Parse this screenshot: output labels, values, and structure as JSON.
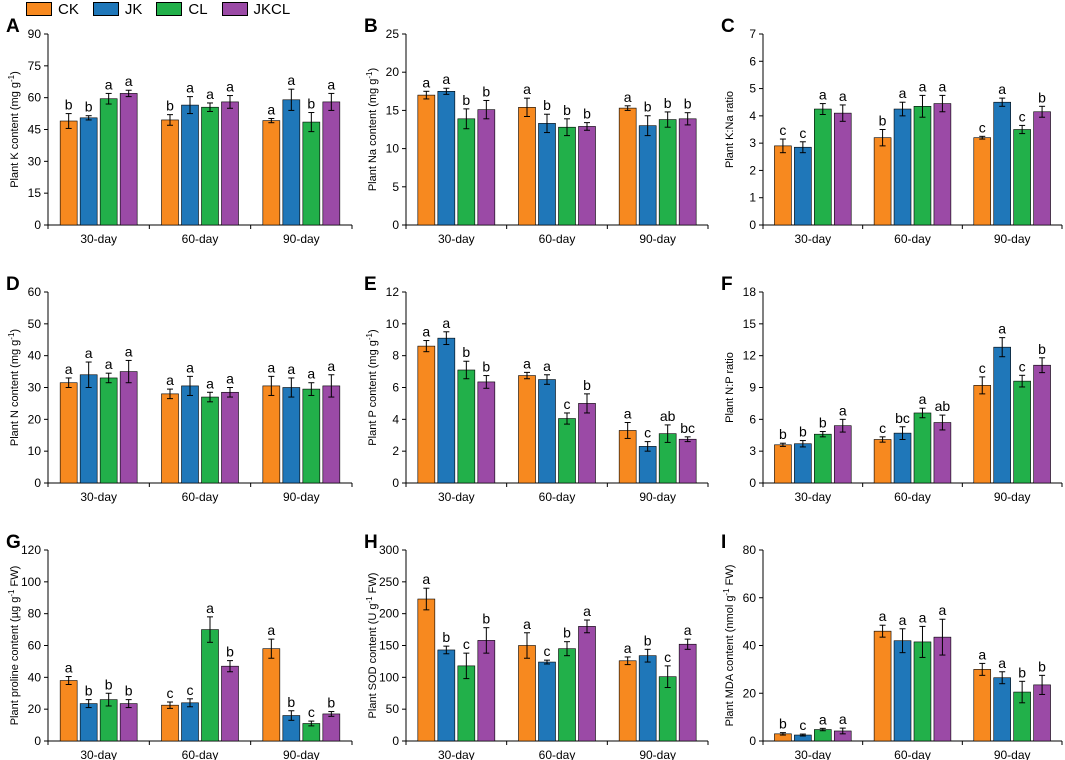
{
  "legend": {
    "items": [
      {
        "label": "CK",
        "color": "#f7891f"
      },
      {
        "label": "JK",
        "color": "#1f77b9"
      },
      {
        "label": "CL",
        "color": "#22b04a"
      },
      {
        "label": "JKCL",
        "color": "#9b4aa6"
      }
    ]
  },
  "chart_data": [
    {
      "panel": "A",
      "type": "bar",
      "categories": [
        "30-day",
        "60-day",
        "90-day"
      ],
      "ylabel": "Plant K content (mg g-1)",
      "ylim": [
        0,
        90
      ],
      "yticks": [
        0,
        15,
        30,
        45,
        60,
        75,
        90
      ],
      "series": [
        {
          "name": "CK",
          "values": [
            49,
            49.5,
            49.2
          ],
          "errors": [
            3.5,
            2.5,
            1.0
          ],
          "letters": [
            "b",
            "b",
            "a"
          ]
        },
        {
          "name": "JK",
          "values": [
            50.5,
            56.5,
            59
          ],
          "errors": [
            1.0,
            4.0,
            5.0
          ],
          "letters": [
            "b",
            "a",
            "a"
          ]
        },
        {
          "name": "CL",
          "values": [
            59.5,
            55.5,
            48.5
          ],
          "errors": [
            2.5,
            2.0,
            4.5
          ],
          "letters": [
            "a",
            "a",
            "b"
          ]
        },
        {
          "name": "JKCL",
          "values": [
            62,
            58,
            58
          ],
          "errors": [
            1.5,
            3.0,
            4.0
          ],
          "letters": [
            "a",
            "a",
            "a"
          ]
        }
      ]
    },
    {
      "panel": "B",
      "type": "bar",
      "categories": [
        "30-day",
        "60-day",
        "90-day"
      ],
      "ylabel": "Plant Na content (mg g-1)",
      "ylim": [
        0,
        25
      ],
      "yticks": [
        0,
        5,
        10,
        15,
        20,
        25
      ],
      "series": [
        {
          "name": "CK",
          "values": [
            17,
            15.4,
            15.3
          ],
          "errors": [
            0.5,
            1.2,
            0.3
          ],
          "letters": [
            "a",
            "a",
            "a"
          ]
        },
        {
          "name": "JK",
          "values": [
            17.5,
            13.3,
            13
          ],
          "errors": [
            0.4,
            1.2,
            1.3
          ],
          "letters": [
            "a",
            "b",
            "b"
          ]
        },
        {
          "name": "CL",
          "values": [
            13.9,
            12.8,
            13.8
          ],
          "errors": [
            1.3,
            1.1,
            1.0
          ],
          "letters": [
            "b",
            "b",
            "b"
          ]
        },
        {
          "name": "JKCL",
          "values": [
            15.1,
            12.9,
            13.9
          ],
          "errors": [
            1.2,
            0.5,
            0.8
          ],
          "letters": [
            "b",
            "b",
            "b"
          ]
        }
      ]
    },
    {
      "panel": "C",
      "type": "bar",
      "categories": [
        "30-day",
        "60-day",
        "90-day"
      ],
      "ylabel": "Plant K:Na ratio",
      "ylim": [
        0,
        7
      ],
      "yticks": [
        0,
        1,
        2,
        3,
        4,
        5,
        6,
        7
      ],
      "series": [
        {
          "name": "CK",
          "values": [
            2.9,
            3.2,
            3.2
          ],
          "errors": [
            0.25,
            0.3,
            0.05
          ],
          "letters": [
            "c",
            "b",
            "c"
          ]
        },
        {
          "name": "JK",
          "values": [
            2.85,
            4.25,
            4.5
          ],
          "errors": [
            0.2,
            0.25,
            0.15
          ],
          "letters": [
            "c",
            "a",
            "a"
          ]
        },
        {
          "name": "CL",
          "values": [
            4.25,
            4.35,
            3.5
          ],
          "errors": [
            0.2,
            0.4,
            0.15
          ],
          "letters": [
            "a",
            "a",
            "c"
          ]
        },
        {
          "name": "JKCL",
          "values": [
            4.1,
            4.45,
            4.15
          ],
          "errors": [
            0.3,
            0.3,
            0.2
          ],
          "letters": [
            "a",
            "a",
            "b"
          ]
        }
      ]
    },
    {
      "panel": "D",
      "type": "bar",
      "categories": [
        "30-day",
        "60-day",
        "90-day"
      ],
      "ylabel": "Plant N content (mg g-1)",
      "ylim": [
        0,
        60
      ],
      "yticks": [
        0,
        10,
        20,
        30,
        40,
        50,
        60
      ],
      "series": [
        {
          "name": "CK",
          "values": [
            31.5,
            28,
            30.5
          ],
          "errors": [
            1.5,
            1.5,
            3.0
          ],
          "letters": [
            "a",
            "a",
            "a"
          ]
        },
        {
          "name": "JK",
          "values": [
            34,
            30.5,
            30
          ],
          "errors": [
            4.0,
            3.0,
            3.0
          ],
          "letters": [
            "a",
            "a",
            "a"
          ]
        },
        {
          "name": "CL",
          "values": [
            33,
            27,
            29.5
          ],
          "errors": [
            1.5,
            1.5,
            2.0
          ],
          "letters": [
            "a",
            "a",
            "a"
          ]
        },
        {
          "name": "JKCL",
          "values": [
            35,
            28.5,
            30.5
          ],
          "errors": [
            3.5,
            1.5,
            3.5
          ],
          "letters": [
            "a",
            "a",
            "a"
          ]
        }
      ]
    },
    {
      "panel": "E",
      "type": "bar",
      "categories": [
        "30-day",
        "60-day",
        "90-day"
      ],
      "ylabel": "Plant P content (mg g-1)",
      "ylim": [
        0,
        12
      ],
      "yticks": [
        0,
        2,
        4,
        6,
        8,
        10,
        12
      ],
      "series": [
        {
          "name": "CK",
          "values": [
            8.6,
            6.75,
            3.3
          ],
          "errors": [
            0.35,
            0.2,
            0.5
          ],
          "letters": [
            "a",
            "a",
            "a"
          ]
        },
        {
          "name": "JK",
          "values": [
            9.1,
            6.5,
            2.3
          ],
          "errors": [
            0.4,
            0.3,
            0.3
          ],
          "letters": [
            "a",
            "a",
            "c"
          ]
        },
        {
          "name": "CL",
          "values": [
            7.1,
            4.05,
            3.1
          ],
          "errors": [
            0.55,
            0.35,
            0.55
          ],
          "letters": [
            "b",
            "c",
            "ab"
          ]
        },
        {
          "name": "JKCL",
          "values": [
            6.35,
            5.0,
            2.75
          ],
          "errors": [
            0.4,
            0.6,
            0.15
          ],
          "letters": [
            "b",
            "b",
            "bc"
          ]
        }
      ]
    },
    {
      "panel": "F",
      "type": "bar",
      "categories": [
        "30-day",
        "60-day",
        "90-day"
      ],
      "ylabel": "Plant N:P ratio",
      "ylim": [
        0,
        18
      ],
      "yticks": [
        0,
        3,
        6,
        9,
        12,
        15,
        18
      ],
      "series": [
        {
          "name": "CK",
          "values": [
            3.6,
            4.1,
            9.2
          ],
          "errors": [
            0.15,
            0.25,
            0.8
          ],
          "letters": [
            "b",
            "c",
            "c"
          ]
        },
        {
          "name": "JK",
          "values": [
            3.7,
            4.7,
            12.8
          ],
          "errors": [
            0.3,
            0.6,
            0.9
          ],
          "letters": [
            "b",
            "bc",
            "a"
          ]
        },
        {
          "name": "CL",
          "values": [
            4.6,
            6.6,
            9.6
          ],
          "errors": [
            0.25,
            0.45,
            0.55
          ],
          "letters": [
            "b",
            "a",
            "c"
          ]
        },
        {
          "name": "JKCL",
          "values": [
            5.4,
            5.7,
            11.1
          ],
          "errors": [
            0.6,
            0.7,
            0.7
          ],
          "letters": [
            "a",
            "ab",
            "b"
          ]
        }
      ]
    },
    {
      "panel": "G",
      "type": "bar",
      "categories": [
        "30-day",
        "60-day",
        "90-day"
      ],
      "ylabel": "Plant proline content (µg g-1 FW)",
      "ylim": [
        0,
        120
      ],
      "yticks": [
        0,
        20,
        40,
        60,
        80,
        100,
        120
      ],
      "series": [
        {
          "name": "CK",
          "values": [
            38,
            22.5,
            58
          ],
          "errors": [
            2.5,
            2.0,
            6.0
          ],
          "letters": [
            "a",
            "c",
            "a"
          ]
        },
        {
          "name": "JK",
          "values": [
            23.5,
            24,
            16
          ],
          "errors": [
            2.5,
            2.5,
            3.0
          ],
          "letters": [
            "b",
            "c",
            "b"
          ]
        },
        {
          "name": "CL",
          "values": [
            26,
            70,
            11
          ],
          "errors": [
            4.0,
            8.0,
            1.5
          ],
          "letters": [
            "b",
            "a",
            "c"
          ]
        },
        {
          "name": "JKCL",
          "values": [
            23.5,
            47,
            17
          ],
          "errors": [
            2.5,
            3.5,
            1.5
          ],
          "letters": [
            "b",
            "b",
            "b"
          ]
        }
      ]
    },
    {
      "panel": "H",
      "type": "bar",
      "categories": [
        "30-day",
        "60-day",
        "90-day"
      ],
      "ylabel": "Plant SOD content (U g-1 FW)",
      "ylim": [
        0,
        300
      ],
      "yticks": [
        0,
        50,
        100,
        150,
        200,
        250,
        300
      ],
      "series": [
        {
          "name": "CK",
          "values": [
            223,
            150,
            126
          ],
          "errors": [
            17,
            20,
            6
          ],
          "letters": [
            "a",
            "a",
            "a"
          ]
        },
        {
          "name": "JK",
          "values": [
            143,
            124,
            134
          ],
          "errors": [
            6,
            3,
            10
          ],
          "letters": [
            "b",
            "c",
            "b"
          ]
        },
        {
          "name": "CL",
          "values": [
            118,
            145,
            101
          ],
          "errors": [
            20,
            11,
            17
          ],
          "letters": [
            "c",
            "b",
            "c"
          ]
        },
        {
          "name": "JKCL",
          "values": [
            158,
            180,
            152
          ],
          "errors": [
            20,
            10,
            8
          ],
          "letters": [
            "b",
            "a",
            "a"
          ]
        }
      ]
    },
    {
      "panel": "I",
      "type": "bar",
      "categories": [
        "30-day",
        "60-day",
        "90-day"
      ],
      "ylabel": "Plant MDA content (nmol g-1 FW)",
      "ylim": [
        0,
        80
      ],
      "yticks": [
        0,
        20,
        40,
        60,
        80
      ],
      "series": [
        {
          "name": "CK",
          "values": [
            3,
            46,
            30
          ],
          "errors": [
            0.5,
            2.5,
            2.5
          ],
          "letters": [
            "b",
            "a",
            "a"
          ]
        },
        {
          "name": "JK",
          "values": [
            2.5,
            42,
            26.5
          ],
          "errors": [
            0.4,
            5,
            2.5
          ],
          "letters": [
            "c",
            "a",
            "a"
          ]
        },
        {
          "name": "CL",
          "values": [
            4.8,
            41.5,
            20.5
          ],
          "errors": [
            0.5,
            6.5,
            4.5
          ],
          "letters": [
            "a",
            "a",
            "b"
          ]
        },
        {
          "name": "JKCL",
          "values": [
            4.2,
            43.5,
            23.5
          ],
          "errors": [
            1.2,
            7.5,
            4.0
          ],
          "letters": [
            "a",
            "a",
            "b"
          ]
        }
      ]
    }
  ]
}
